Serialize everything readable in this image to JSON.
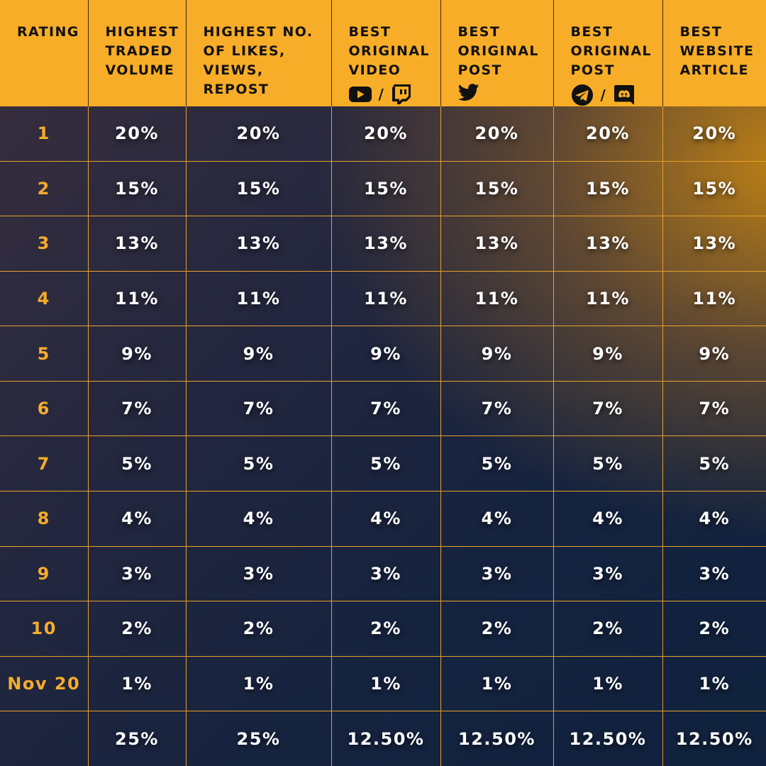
{
  "header": {
    "rating": "RATING",
    "volume": "HIGHEST TRADED VOLUME",
    "likes": "HIGHEST NO. OF LIKES, VIEWS, REPOST",
    "video": "BEST ORIGINAL VIDEO",
    "post_twitter": "BEST ORIGINAL POST",
    "post_chat": "BEST ORIGINAL POST",
    "article": "BEST WEBSITE ARTICLE",
    "separator": "/",
    "video_icons": [
      "youtube-icon",
      "twitch-icon"
    ],
    "post_twitter_icons": [
      "twitter-icon"
    ],
    "post_chat_icons": [
      "telegram-icon",
      "discord-icon"
    ]
  },
  "rows": [
    {
      "rank": "1",
      "values": [
        "20%",
        "20%",
        "20%",
        "20%",
        "20%",
        "20%"
      ]
    },
    {
      "rank": "2",
      "values": [
        "15%",
        "15%",
        "15%",
        "15%",
        "15%",
        "15%"
      ]
    },
    {
      "rank": "3",
      "values": [
        "13%",
        "13%",
        "13%",
        "13%",
        "13%",
        "13%"
      ]
    },
    {
      "rank": "4",
      "values": [
        "11%",
        "11%",
        "11%",
        "11%",
        "11%",
        "11%"
      ]
    },
    {
      "rank": "5",
      "values": [
        "9%",
        "9%",
        "9%",
        "9%",
        "9%",
        "9%"
      ]
    },
    {
      "rank": "6",
      "values": [
        "7%",
        "7%",
        "7%",
        "7%",
        "7%",
        "7%"
      ]
    },
    {
      "rank": "7",
      "values": [
        "5%",
        "5%",
        "5%",
        "5%",
        "5%",
        "5%"
      ]
    },
    {
      "rank": "8",
      "values": [
        "4%",
        "4%",
        "4%",
        "4%",
        "4%",
        "4%"
      ]
    },
    {
      "rank": "9",
      "values": [
        "3%",
        "3%",
        "3%",
        "3%",
        "3%",
        "3%"
      ]
    },
    {
      "rank": "10",
      "values": [
        "2%",
        "2%",
        "2%",
        "2%",
        "2%",
        "2%"
      ]
    },
    {
      "rank": "Nov 20",
      "values": [
        "1%",
        "1%",
        "1%",
        "1%",
        "1%",
        "1%"
      ]
    },
    {
      "rank": "",
      "values": [
        "25%",
        "25%",
        "12.50%",
        "12.50%",
        "12.50%",
        "12.50%"
      ]
    }
  ],
  "colors": {
    "header_bg": "#f7ad27",
    "grid_line": "#e6a12a",
    "rank_text": "#f5ac2c",
    "value_text": "#ffffff"
  }
}
